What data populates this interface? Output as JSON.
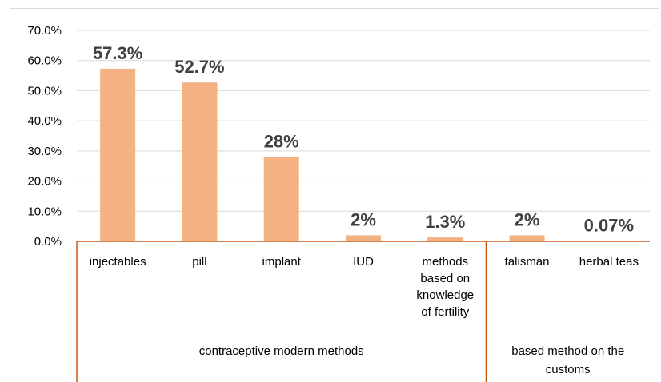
{
  "chart_data": {
    "type": "bar",
    "categories": [
      "injectables",
      "pill",
      "implant",
      "IUD",
      "methods based on knowledge of fertility",
      "talisman",
      "herbal teas"
    ],
    "category_lines": [
      [
        "injectables"
      ],
      [
        "pill"
      ],
      [
        "implant"
      ],
      [
        "IUD"
      ],
      [
        "methods",
        "based on",
        "knowledge",
        "of fertility"
      ],
      [
        "talisman"
      ],
      [
        "herbal teas"
      ]
    ],
    "values": [
      57.3,
      52.7,
      28,
      2,
      1.3,
      2,
      0.07
    ],
    "data_labels": [
      "57.3%",
      "52.7%",
      "28%",
      "2%",
      "1.3%",
      "2%",
      "0.07%"
    ],
    "groups": [
      {
        "label_lines": [
          "contraceptive modern methods"
        ],
        "categories": 5
      },
      {
        "label_lines": [
          "based method on the",
          "customs"
        ],
        "categories": 2
      }
    ],
    "y_ticks": [
      "0.0%",
      "10.0%",
      "20.0%",
      "30.0%",
      "40.0%",
      "50.0%",
      "60.0%",
      "70.0%"
    ],
    "ylim": [
      0,
      70
    ],
    "grid": true,
    "title": "",
    "xlabel": "",
    "ylabel": "",
    "colors": {
      "bar": "#F4B183",
      "axis": "#C55A11",
      "grid": "#D9D9D9"
    }
  }
}
